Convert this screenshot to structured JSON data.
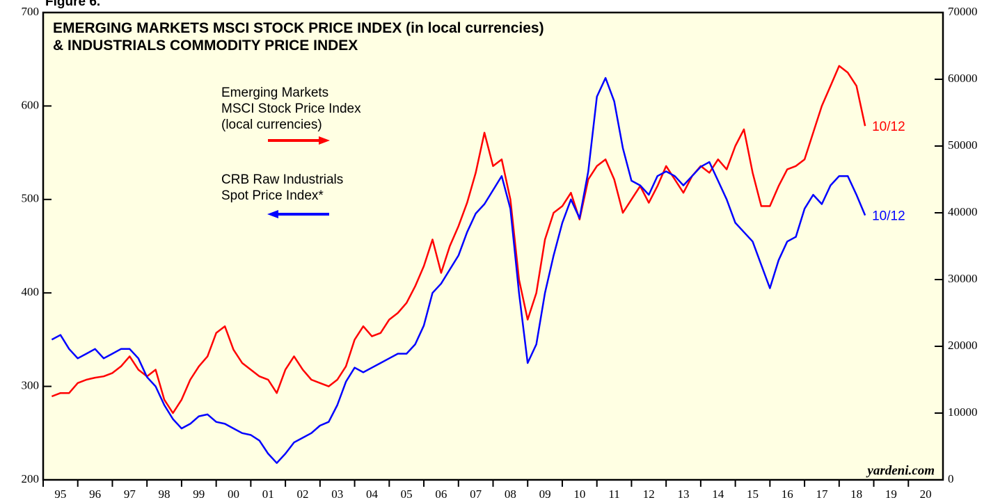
{
  "chart_data": {
    "type": "line",
    "figure_label": "Figure 6.",
    "title": "EMERGING MARKETS MSCI STOCK PRICE INDEX (in local currencies)\n& INDUSTRIALS COMMODITY PRICE INDEX",
    "source": "yardeni.com",
    "x": [
      1995.25,
      1995.5,
      1995.75,
      1996,
      1996.25,
      1996.5,
      1996.75,
      1997,
      1997.25,
      1997.5,
      1997.75,
      1998,
      1998.25,
      1998.5,
      1998.75,
      1999,
      1999.25,
      1999.5,
      1999.75,
      2000,
      2000.25,
      2000.5,
      2000.75,
      2001,
      2001.25,
      2001.5,
      2001.75,
      2002,
      2002.25,
      2002.5,
      2002.75,
      2003,
      2003.25,
      2003.5,
      2003.75,
      2004,
      2004.25,
      2004.5,
      2004.75,
      2005,
      2005.25,
      2005.5,
      2005.75,
      2006,
      2006.25,
      2006.5,
      2006.75,
      2007,
      2007.25,
      2007.5,
      2007.75,
      2008,
      2008.25,
      2008.5,
      2008.75,
      2009,
      2009.25,
      2009.5,
      2009.75,
      2010,
      2010.25,
      2010.5,
      2010.75,
      2011,
      2011.25,
      2011.5,
      2011.75,
      2012,
      2012.25,
      2012.5,
      2012.75,
      2013,
      2013.25,
      2013.5,
      2013.75,
      2014,
      2014.25,
      2014.5,
      2014.75,
      2015,
      2015.25,
      2015.5,
      2015.75,
      2016,
      2016.25,
      2016.5,
      2016.75,
      2017,
      2017.25,
      2017.5,
      2017.75,
      2018,
      2018.25,
      2018.5,
      2018.75
    ],
    "xlim": [
      1995,
      2021
    ],
    "xticks": [
      {
        "value": 1995.5,
        "label": "95"
      },
      {
        "value": 1996.5,
        "label": "96"
      },
      {
        "value": 1997.5,
        "label": "97"
      },
      {
        "value": 1998.5,
        "label": "98"
      },
      {
        "value": 1999.5,
        "label": "99"
      },
      {
        "value": 2000.5,
        "label": "00"
      },
      {
        "value": 2001.5,
        "label": "01"
      },
      {
        "value": 2002.5,
        "label": "02"
      },
      {
        "value": 2003.5,
        "label": "03"
      },
      {
        "value": 2004.5,
        "label": "04"
      },
      {
        "value": 2005.5,
        "label": "05"
      },
      {
        "value": 2006.5,
        "label": "06"
      },
      {
        "value": 2007.5,
        "label": "07"
      },
      {
        "value": 2008.5,
        "label": "08"
      },
      {
        "value": 2009.5,
        "label": "09"
      },
      {
        "value": 2010.5,
        "label": "10"
      },
      {
        "value": 2011.5,
        "label": "11"
      },
      {
        "value": 2012.5,
        "label": "12"
      },
      {
        "value": 2013.5,
        "label": "13"
      },
      {
        "value": 2014.5,
        "label": "14"
      },
      {
        "value": 2015.5,
        "label": "15"
      },
      {
        "value": 2016.5,
        "label": "16"
      },
      {
        "value": 2017.5,
        "label": "17"
      },
      {
        "value": 2018.5,
        "label": "18"
      },
      {
        "value": 2019.5,
        "label": "19"
      },
      {
        "value": 2020.5,
        "label": "20"
      }
    ],
    "ylim": [
      200,
      700
    ],
    "yticks": [
      200,
      300,
      400,
      500,
      600,
      700
    ],
    "y2lim": [
      0,
      70000
    ],
    "y2ticks": [
      0,
      10000,
      20000,
      30000,
      40000,
      50000,
      60000,
      70000
    ],
    "series": [
      {
        "name": "Emerging Markets\nMSCI Stock Price Index\n(local currencies)",
        "color": "#ff0000",
        "axis": "y2",
        "values": [
          12500,
          13000,
          13000,
          14500,
          15000,
          15300,
          15500,
          16000,
          17000,
          18500,
          16500,
          15500,
          16500,
          12000,
          10000,
          12000,
          15000,
          17000,
          18500,
          22000,
          23000,
          19500,
          17500,
          16500,
          15500,
          15000,
          13000,
          16500,
          18500,
          16500,
          15000,
          14500,
          14000,
          15000,
          17000,
          21000,
          23000,
          21500,
          22000,
          24000,
          25000,
          26500,
          29000,
          32000,
          36000,
          31000,
          35000,
          38000,
          41500,
          46000,
          52000,
          47000,
          48000,
          42000,
          30000,
          24000,
          28000,
          36000,
          40000,
          41000,
          43000,
          39000,
          45000,
          47000,
          48000,
          45000,
          40000,
          42000,
          44000,
          41500,
          44000,
          47000,
          45000,
          43000,
          45500,
          47000,
          46000,
          48000,
          46500,
          50000,
          52500,
          46000,
          41000,
          41000,
          44000,
          46500,
          47000,
          48000,
          52000,
          56000,
          59000,
          62000,
          61000,
          59000,
          53000
        ]
      },
      {
        "name": "CRB Raw Industrials\nSpot Price Index*",
        "color": "#0000ff",
        "axis": "y",
        "values": [
          350,
          355,
          340,
          330,
          335,
          340,
          330,
          335,
          340,
          340,
          330,
          310,
          300,
          280,
          265,
          255,
          260,
          268,
          270,
          262,
          260,
          255,
          250,
          248,
          242,
          228,
          218,
          228,
          240,
          245,
          250,
          258,
          262,
          280,
          305,
          320,
          315,
          320,
          325,
          330,
          335,
          335,
          345,
          365,
          400,
          410,
          425,
          440,
          465,
          485,
          495,
          510,
          525,
          490,
          400,
          325,
          345,
          400,
          440,
          475,
          500,
          480,
          530,
          610,
          630,
          605,
          555,
          520,
          515,
          505,
          525,
          530,
          525,
          515,
          525,
          535,
          540,
          520,
          500,
          475,
          465,
          455,
          430,
          405,
          435,
          455,
          460,
          490,
          505,
          495,
          515,
          525,
          525,
          505,
          483
        ]
      }
    ],
    "annotations": [
      {
        "text": "10/12",
        "series": 0
      },
      {
        "text": "10/12",
        "series": 1
      }
    ]
  }
}
